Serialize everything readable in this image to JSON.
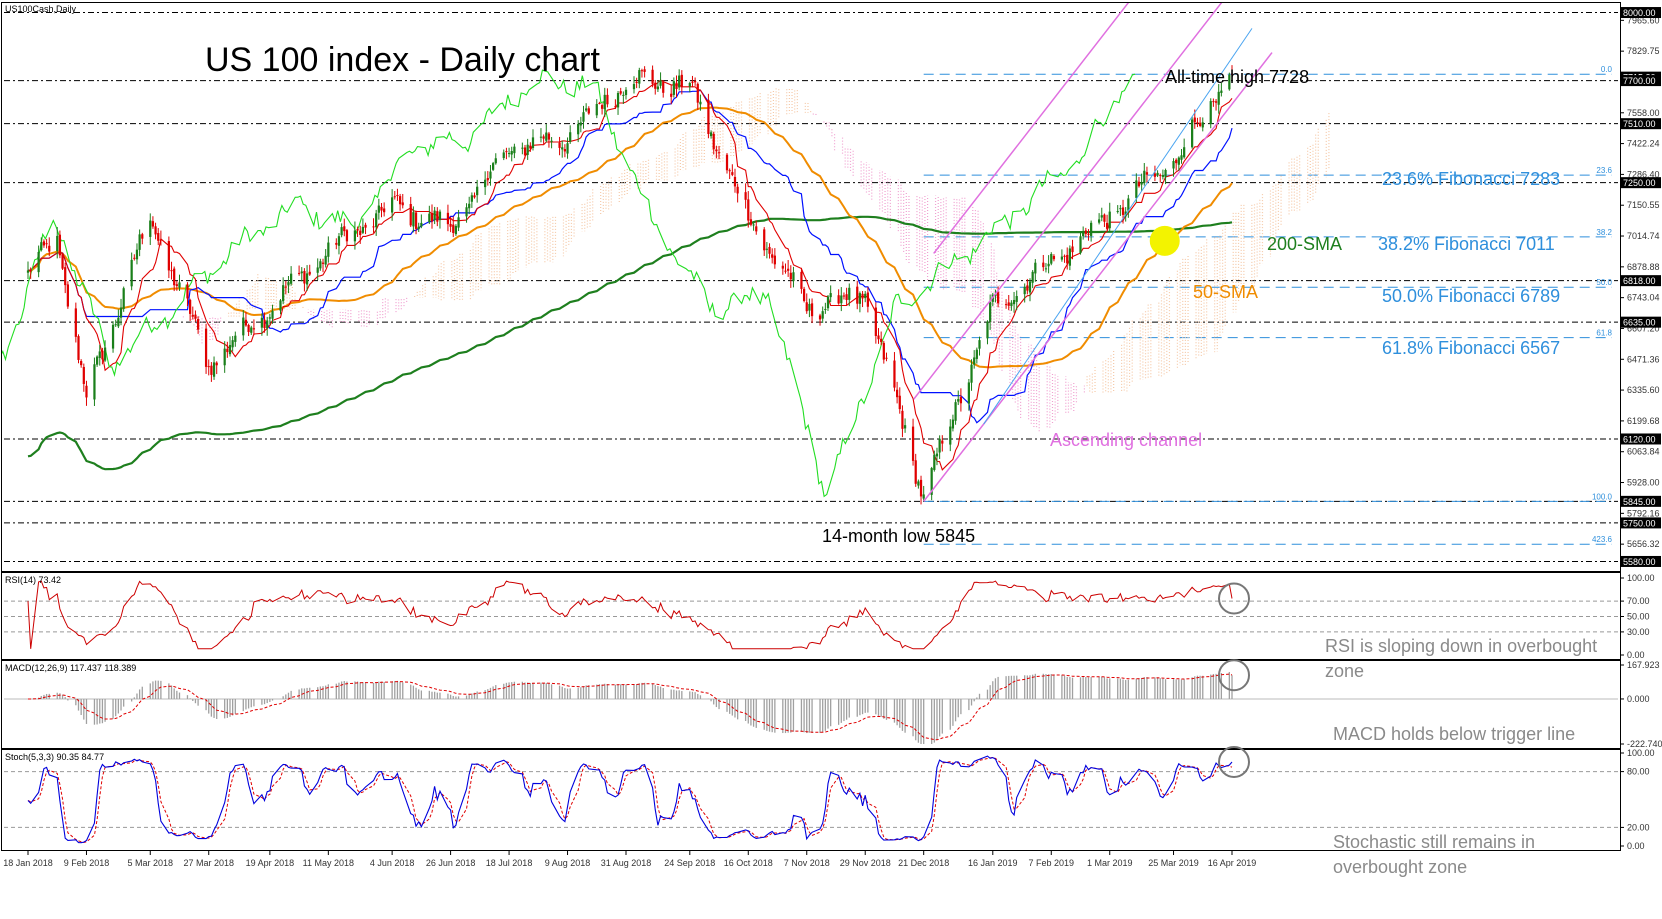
{
  "window_title": "US100Cash,Daily",
  "chart_title": "US 100 index - Daily chart",
  "colors": {
    "bull": "#1a7f1a",
    "bear": "#e00000",
    "sma50": "#f08c00",
    "sma200": "#1e7f1e",
    "fib": "#2e8fdc",
    "channel": "#e070e0",
    "tenkan": "#e00000",
    "kijun": "#0010ff",
    "chikou": "#22dd22",
    "rsi": "#cc0000",
    "macd_hist": "#a0a0a0",
    "macd_signal": "#e00000",
    "stoch_k": "#0000dd",
    "stoch_d": "#e00000"
  },
  "chart_data": [
    {
      "type": "candlestick",
      "panel": "price",
      "symbol": "US100Cash",
      "timeframe": "Daily",
      "ylim": [
        5560,
        8020
      ],
      "y_tick_labels": [
        "8000.00",
        "7965.60",
        "7829.75",
        "7693.90",
        "7558.00",
        "7422.24",
        "7286.40",
        "7150.55",
        "7014.74",
        "6878.88",
        "6743.04",
        "6607.20",
        "6471.36",
        "6335.60",
        "6199.68",
        "6063.84",
        "5928.00",
        "5792.16",
        "5656.32"
      ],
      "price_tags": [
        "8000.00",
        "7715.20",
        "7700.00",
        "7510.00",
        "7250.00",
        "6818.00",
        "6635.00",
        "6120.00",
        "5845.00",
        "5750.00",
        "5580.00"
      ],
      "horizontal_levels": [
        8000,
        7700,
        7510,
        7250,
        6818,
        6635,
        6120,
        5845,
        5750,
        5580
      ],
      "x_tick_labels": [
        "18 Jan 2018",
        "9 Feb 2018",
        "5 Mar 2018",
        "27 Mar 2018",
        "19 Apr 2018",
        "11 May 2018",
        "4 Jun 2018",
        "26 Jun 2018",
        "18 Jul 2018",
        "9 Aug 2018",
        "31 Aug 2018",
        "24 Sep 2018",
        "16 Oct 2018",
        "7 Nov 2018",
        "29 Nov 2018",
        "21 Dec 2018",
        "16 Jan 2019",
        "7 Feb 2019",
        "1 Mar 2019",
        "25 Mar 2019",
        "16 Apr 2019"
      ],
      "anchors": [
        [
          "18 Jan 2018",
          6850
        ],
        [
          "29 Jan 2018",
          7000
        ],
        [
          "9 Feb 2018",
          6300
        ],
        [
          "5 Mar 2018",
          7100
        ],
        [
          "27 Mar 2018",
          6450
        ],
        [
          "19 Apr 2018",
          6700
        ],
        [
          "11 May 2018",
          6950
        ],
        [
          "4 Jun 2018",
          7150
        ],
        [
          "26 Jun 2018",
          7050
        ],
        [
          "18 Jul 2018",
          7400
        ],
        [
          "9 Aug 2018",
          7450
        ],
        [
          "31 Aug 2018",
          7700
        ],
        [
          "24 Sep 2018",
          7680
        ],
        [
          "16 Oct 2018",
          7100
        ],
        [
          "7 Nov 2018",
          6700
        ],
        [
          "29 Nov 2018",
          6750
        ],
        [
          "21 Dec 2018",
          5870
        ],
        [
          "16 Jan 2019",
          6700
        ],
        [
          "7 Feb 2019",
          6900
        ],
        [
          "1 Mar 2019",
          7100
        ],
        [
          "25 Mar 2019",
          7350
        ],
        [
          "16 Apr 2019",
          7728
        ]
      ],
      "fibonacci": [
        {
          "ratio": "0.0",
          "level": 7728
        },
        {
          "ratio": "23.6",
          "level": 7283,
          "label": "23.6% Fibonacci 7283"
        },
        {
          "ratio": "38.2",
          "level": 7011,
          "label": "38.2% Fibonacci 7011"
        },
        {
          "ratio": "50.0",
          "level": 6789,
          "label": "50.0% Fibonacci 6789"
        },
        {
          "ratio": "61.8",
          "level": 6567,
          "label": "61.8% Fibonacci 6567"
        },
        {
          "ratio": "100.0",
          "level": 5845
        },
        {
          "ratio": "423.6",
          "level": 5656
        }
      ],
      "annotations": {
        "all_time_high": "All-time high 7728",
        "low": "14-month low 5845",
        "sma200": "200-SMA",
        "sma50": "50-SMA",
        "channel": "Ascending channel"
      },
      "indicators": [
        "Ichimoku cloud",
        "50-SMA",
        "200-SMA",
        "Ascending channel"
      ]
    },
    {
      "type": "line",
      "panel": "rsi",
      "header": "RSI(14) 73.42",
      "ylim": [
        0,
        100
      ],
      "y_tick_labels": [
        "100.00",
        "70.00",
        "50.00",
        "30.00",
        "0.00"
      ],
      "last_value": 73.42,
      "note": "RSI is sloping down in overbought zone"
    },
    {
      "type": "bar",
      "panel": "macd",
      "header": "MACD(12,26,9) 117.437 118.389",
      "ylim": [
        -222.74,
        167.923
      ],
      "y_tick_labels": [
        "167.923",
        "0.000",
        "-222.740"
      ],
      "macd": 117.437,
      "signal": 118.389,
      "note": "MACD holds below trigger line"
    },
    {
      "type": "line",
      "panel": "stochastic",
      "header": "Stoch(5,3,3) 90.35 84.77",
      "ylim": [
        0,
        100
      ],
      "y_tick_labels": [
        "100.00",
        "80.00",
        "20.00",
        "0.00"
      ],
      "k": 90.35,
      "d": 84.77,
      "note": "Stochastic still remains in overbought zone"
    }
  ]
}
